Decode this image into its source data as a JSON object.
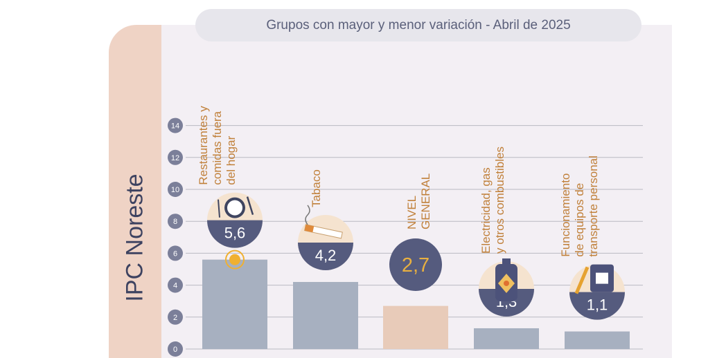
{
  "side_label": "IPC Noreste",
  "title": "Grupos con mayor y menor variación - Abril de 2025",
  "colors": {
    "bar": "#a7b0c0",
    "bar_highlight": "#e8cbb9",
    "badge": "#555b7e",
    "badge_text": "#ffffff",
    "highlight_text": "#e8b040",
    "tick_circle": "#7b7f99",
    "label": "#c0803a",
    "gridline": "#b9b9c2"
  },
  "chart_data": {
    "type": "bar",
    "title": "Grupos con mayor y menor variación - Abril de 2025",
    "categories": [
      [
        "Restaurantes y",
        "comidas fuera",
        "del hogar"
      ],
      [
        "Tabaco"
      ],
      [
        "NIVEL",
        "GENERAL"
      ],
      [
        "Electricidad, gas",
        "y otros combustibles"
      ],
      [
        "Funcionamiento",
        "de equipos de",
        "transporte personal"
      ]
    ],
    "values": [
      5.6,
      4.2,
      2.7,
      1.3,
      1.1
    ],
    "value_labels": [
      "5,6",
      "4,2",
      "2,7",
      "1,3",
      "1,1"
    ],
    "icons": [
      "plate-fork-knife-icon",
      "cigarette-icon",
      "",
      "gas-cylinder-icon",
      "wrench-jerrycan-icon"
    ],
    "highlight_index": 2,
    "yticks": [
      "0",
      "2",
      "4",
      "6",
      "8",
      "10",
      "12",
      "14"
    ],
    "ylim": [
      0,
      14
    ],
    "grid": true,
    "legend": "none"
  }
}
